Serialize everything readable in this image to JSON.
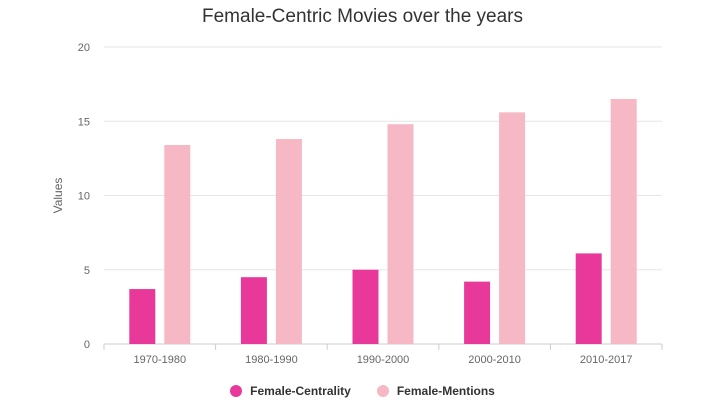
{
  "chart_data": {
    "type": "bar",
    "title": "Female-Centric Movies over the years",
    "xlabel": "",
    "ylabel": "Values",
    "ylim": [
      0,
      20
    ],
    "yticks": [
      0,
      5,
      10,
      15,
      20
    ],
    "grid": true,
    "legend_position": "bottom",
    "categories": [
      "1970-1980",
      "1980-1990",
      "1990-2000",
      "2000-2010",
      "2010-2017"
    ],
    "series": [
      {
        "name": "Female-Centrality",
        "color": "#e8399a",
        "values": [
          3.7,
          4.5,
          5.0,
          4.2,
          6.1
        ]
      },
      {
        "name": "Female-Mentions",
        "color": "#f5b8c4",
        "values": [
          13.4,
          13.8,
          14.8,
          15.6,
          16.5
        ]
      }
    ]
  }
}
